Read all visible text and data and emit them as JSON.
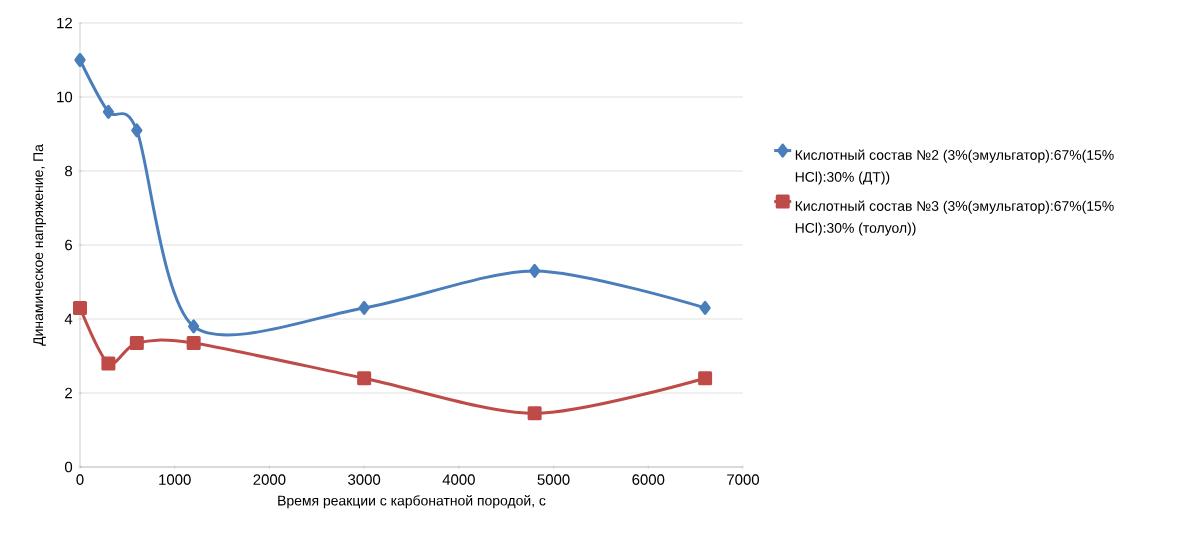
{
  "chart_data": {
    "type": "line",
    "xlabel": "Время реакции с карбонатной породой, с",
    "ylabel": "Динамическое напряжение, Па",
    "xlim": [
      0,
      7000
    ],
    "xticks": [
      0,
      1000,
      2000,
      3000,
      4000,
      5000,
      6000,
      7000
    ],
    "ylim": [
      0,
      12
    ],
    "yticks": [
      0,
      2,
      4,
      6,
      8,
      10,
      12
    ],
    "grid": "y",
    "legend": "right",
    "line_style": "solid",
    "series": [
      {
        "name": "Кислотный состав №2 (3%(эмульгатор):67%(15% HCl):30% (ДТ))",
        "color": "#4a7ebb",
        "marker": "diamond",
        "x": [
          0,
          300,
          600,
          1200,
          3000,
          4800,
          6600
        ],
        "values": [
          11.0,
          9.6,
          9.1,
          3.8,
          4.3,
          5.3,
          4.3
        ]
      },
      {
        "name": "Кислотный состав №3 (3%(эмульгатор):67%(15% HCl):30% (толуол))",
        "color": "#be4b48",
        "marker": "square",
        "x": [
          0,
          300,
          600,
          1200,
          3000,
          4800,
          6600
        ],
        "values": [
          4.3,
          2.8,
          3.35,
          3.35,
          2.4,
          1.45,
          2.4
        ]
      }
    ]
  }
}
